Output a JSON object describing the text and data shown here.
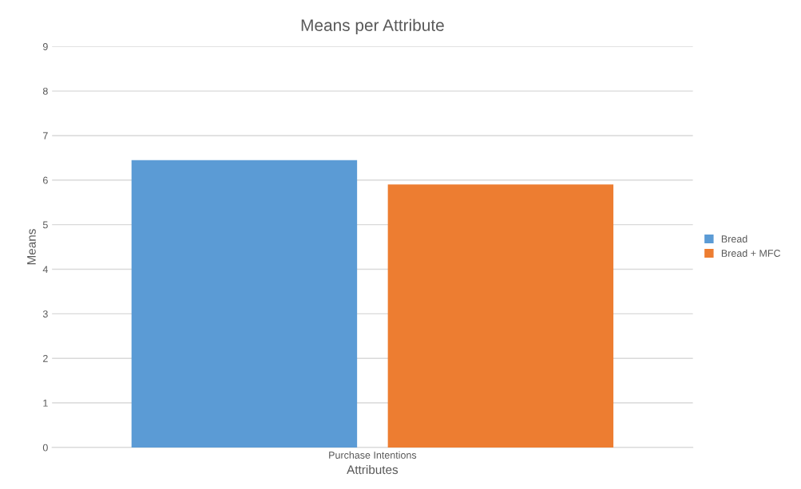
{
  "chart_data": {
    "type": "bar",
    "title": "Means per Attribute",
    "xlabel": "Attributes",
    "ylabel": "Means",
    "categories": [
      "Purchase Intentions"
    ],
    "series": [
      {
        "name": "Bread",
        "color": "#5b9bd5",
        "values": [
          6.45
        ]
      },
      {
        "name": "Bread + MFC",
        "color": "#ed7d31",
        "values": [
          5.9
        ]
      }
    ],
    "ylim": [
      0,
      9
    ],
    "yticks": [
      0,
      1,
      2,
      3,
      4,
      5,
      6,
      7,
      8,
      9
    ],
    "grid": "y",
    "legend": "right"
  }
}
